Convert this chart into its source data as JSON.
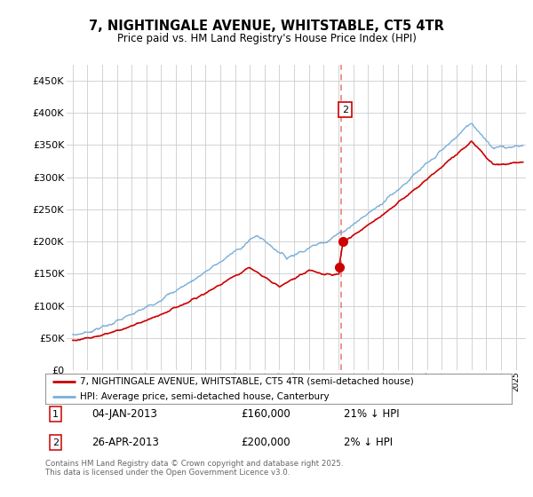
{
  "title": "7, NIGHTINGALE AVENUE, WHITSTABLE, CT5 4TR",
  "subtitle": "Price paid vs. HM Land Registry's House Price Index (HPI)",
  "legend_line1": "7, NIGHTINGALE AVENUE, WHITSTABLE, CT5 4TR (semi-detached house)",
  "legend_line2": "HPI: Average price, semi-detached house, Canterbury",
  "annotation1_date": "04-JAN-2013",
  "annotation1_price": "£160,000",
  "annotation1_hpi": "21% ↓ HPI",
  "annotation2_date": "26-APR-2013",
  "annotation2_price": "£200,000",
  "annotation2_hpi": "2% ↓ HPI",
  "footer": "Contains HM Land Registry data © Crown copyright and database right 2025.\nThis data is licensed under the Open Government Licence v3.0.",
  "red_color": "#cc0000",
  "blue_color": "#7aafda",
  "vline_color": "#e88080",
  "grid_color": "#cccccc",
  "ylim": [
    0,
    475000
  ],
  "yticks": [
    0,
    50000,
    100000,
    150000,
    200000,
    250000,
    300000,
    350000,
    400000,
    450000
  ],
  "ytick_labels": [
    "£0",
    "£50K",
    "£100K",
    "£150K",
    "£200K",
    "£250K",
    "£300K",
    "£350K",
    "£400K",
    "£450K"
  ],
  "sale1_x": 2013.04,
  "sale1_y": 160000,
  "sale2_x": 2013.32,
  "sale2_y": 200000,
  "vline_x": 2013.2,
  "xmin": 1994.6,
  "xmax": 2025.7
}
